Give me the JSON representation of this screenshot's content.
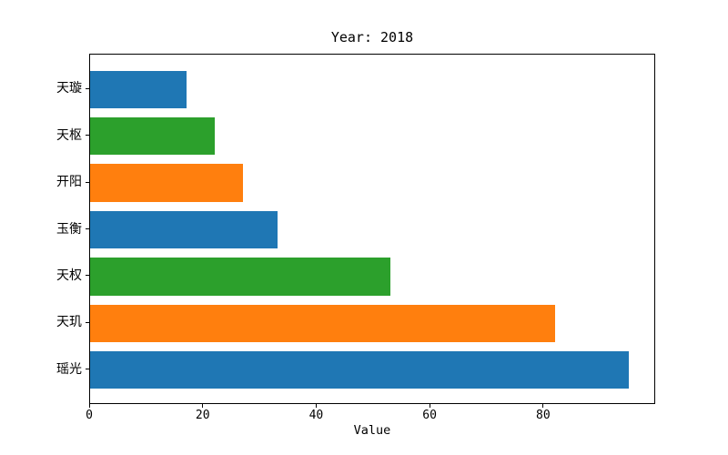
{
  "chart_data": {
    "type": "bar",
    "orientation": "horizontal",
    "title": "Year: 2018",
    "xlabel": "Value",
    "categories": [
      "天璇",
      "天枢",
      "开阳",
      "玉衡",
      "天权",
      "天玑",
      "瑶光"
    ],
    "category_order": "top-to-bottom",
    "values": [
      17,
      22,
      27,
      33,
      53,
      82,
      95
    ],
    "bar_colors": [
      "#1f77b4",
      "#2ca02c",
      "#ff7f0e",
      "#1f77b4",
      "#2ca02c",
      "#ff7f0e",
      "#1f77b4"
    ],
    "x_ticks": [
      0,
      20,
      40,
      60,
      80
    ],
    "xlim": [
      0,
      99.75
    ],
    "grid": false,
    "legend": false,
    "background_color": "#ffffff",
    "axis_color": "#000000"
  }
}
